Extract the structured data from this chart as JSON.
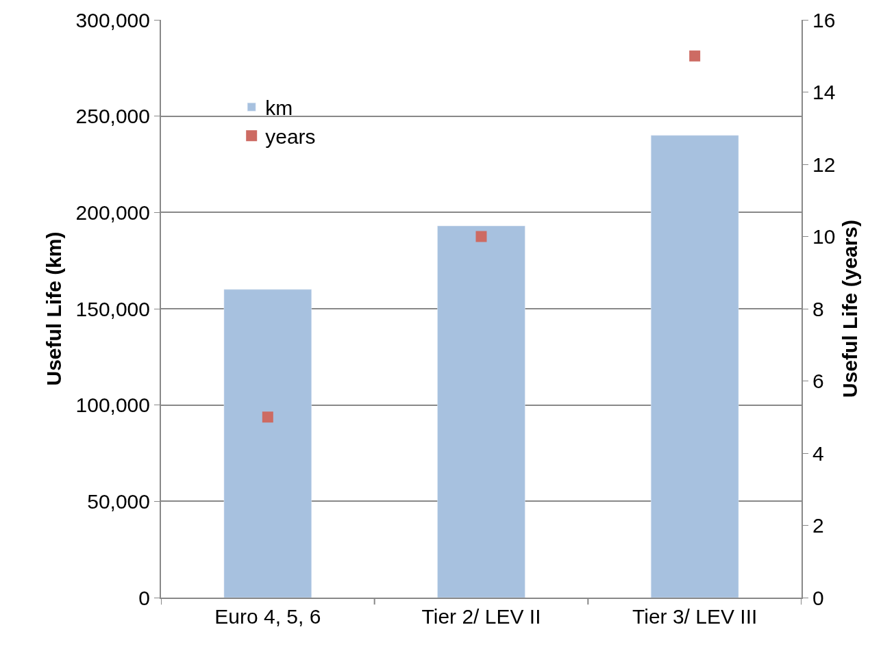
{
  "chart_data": {
    "type": "bar",
    "ylabel": "Useful Life (km)",
    "y2label": "Useful Life (years)",
    "categories": [
      "Euro 4, 5, 6",
      "Tier 2/ LEV II",
      "Tier 3/ LEV III"
    ],
    "series": [
      {
        "name": "km",
        "color": "#a7c1df",
        "values": [
          160000,
          193000,
          240000
        ]
      },
      {
        "name": "years",
        "type": "scatter",
        "axis": "y2",
        "marker": "square",
        "color": "#cd6b63",
        "values": [
          5,
          10,
          15
        ]
      }
    ],
    "ylim": [
      0,
      300000
    ],
    "yticks": [
      {
        "value": 0,
        "label": "0"
      },
      {
        "value": 50000,
        "label": "50,000"
      },
      {
        "value": 100000,
        "label": "100,000"
      },
      {
        "value": 150000,
        "label": "150,000"
      },
      {
        "value": 200000,
        "label": "200,000"
      },
      {
        "value": 250000,
        "label": "250,000"
      },
      {
        "value": 300000,
        "label": "300,000"
      }
    ],
    "y2lim": [
      0,
      16
    ],
    "y2ticks": [
      0,
      2,
      4,
      6,
      8,
      10,
      12,
      14,
      16
    ],
    "grid": "y",
    "legend": "top left"
  }
}
